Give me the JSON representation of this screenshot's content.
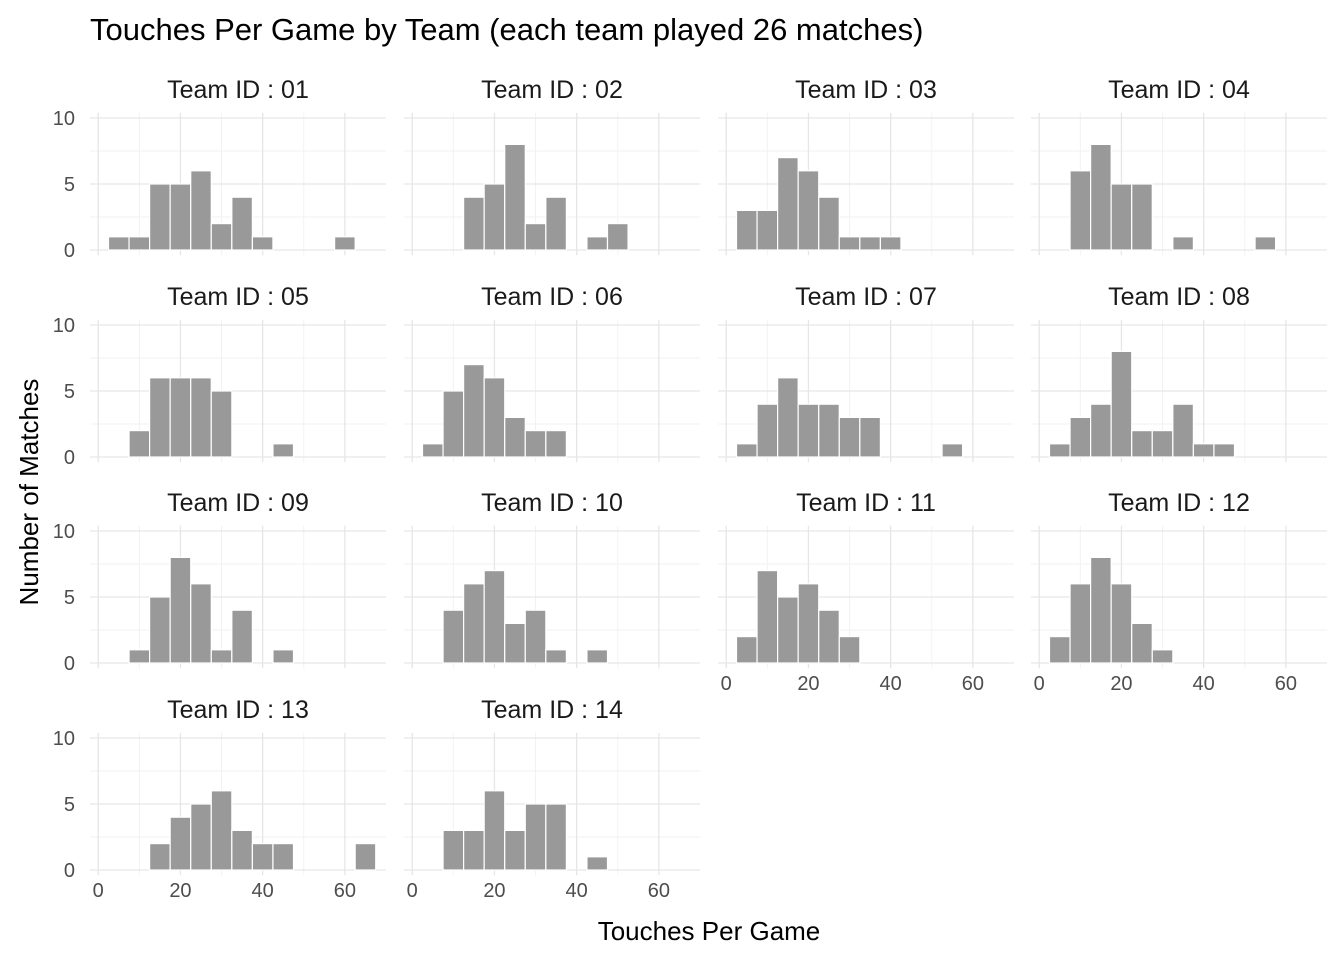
{
  "chart_data": {
    "type": "bar",
    "title": "Touches Per Game by Team (each team played 26 matches)",
    "xlabel": "Touches Per Game",
    "ylabel": "Number of Matches",
    "xlim": [
      -2,
      70
    ],
    "ylim": [
      0,
      10
    ],
    "x_ticks": [
      0,
      20,
      40,
      60
    ],
    "y_ticks": [
      0,
      5,
      10
    ],
    "bin_width": 5,
    "bar_color": "#999999",
    "grid": true,
    "panels": [
      {
        "label": "Team ID : 01",
        "bins": [
          [
            5,
            1
          ],
          [
            10,
            1
          ],
          [
            15,
            5
          ],
          [
            20,
            5
          ],
          [
            25,
            6
          ],
          [
            30,
            2
          ],
          [
            35,
            4
          ],
          [
            40,
            1
          ],
          [
            60,
            1
          ]
        ]
      },
      {
        "label": "Team ID : 02",
        "bins": [
          [
            15,
            4
          ],
          [
            20,
            5
          ],
          [
            25,
            8
          ],
          [
            30,
            2
          ],
          [
            35,
            4
          ],
          [
            45,
            1
          ],
          [
            50,
            2
          ]
        ]
      },
      {
        "label": "Team ID : 03",
        "bins": [
          [
            5,
            3
          ],
          [
            10,
            3
          ],
          [
            15,
            7
          ],
          [
            20,
            6
          ],
          [
            25,
            4
          ],
          [
            30,
            1
          ],
          [
            35,
            1
          ],
          [
            40,
            1
          ]
        ]
      },
      {
        "label": "Team ID : 04",
        "bins": [
          [
            10,
            6
          ],
          [
            15,
            8
          ],
          [
            20,
            5
          ],
          [
            25,
            5
          ],
          [
            35,
            1
          ],
          [
            55,
            1
          ]
        ]
      },
      {
        "label": "Team ID : 05",
        "bins": [
          [
            10,
            2
          ],
          [
            15,
            6
          ],
          [
            20,
            6
          ],
          [
            25,
            6
          ],
          [
            30,
            5
          ],
          [
            45,
            1
          ]
        ]
      },
      {
        "label": "Team ID : 06",
        "bins": [
          [
            5,
            1
          ],
          [
            10,
            5
          ],
          [
            15,
            7
          ],
          [
            20,
            6
          ],
          [
            25,
            3
          ],
          [
            30,
            2
          ],
          [
            35,
            2
          ]
        ]
      },
      {
        "label": "Team ID : 07",
        "bins": [
          [
            5,
            1
          ],
          [
            10,
            4
          ],
          [
            15,
            6
          ],
          [
            20,
            4
          ],
          [
            25,
            4
          ],
          [
            30,
            3
          ],
          [
            35,
            3
          ],
          [
            55,
            1
          ]
        ]
      },
      {
        "label": "Team ID : 08",
        "bins": [
          [
            5,
            1
          ],
          [
            10,
            3
          ],
          [
            15,
            4
          ],
          [
            20,
            8
          ],
          [
            25,
            2
          ],
          [
            30,
            2
          ],
          [
            35,
            4
          ],
          [
            40,
            1
          ],
          [
            45,
            1
          ]
        ]
      },
      {
        "label": "Team ID : 09",
        "bins": [
          [
            10,
            1
          ],
          [
            15,
            5
          ],
          [
            20,
            8
          ],
          [
            25,
            6
          ],
          [
            30,
            1
          ],
          [
            35,
            4
          ],
          [
            45,
            1
          ]
        ]
      },
      {
        "label": "Team ID : 10",
        "bins": [
          [
            10,
            4
          ],
          [
            15,
            6
          ],
          [
            20,
            7
          ],
          [
            25,
            3
          ],
          [
            30,
            4
          ],
          [
            35,
            1
          ],
          [
            45,
            1
          ]
        ]
      },
      {
        "label": "Team ID : 11",
        "bins": [
          [
            5,
            2
          ],
          [
            10,
            7
          ],
          [
            15,
            5
          ],
          [
            20,
            6
          ],
          [
            25,
            4
          ],
          [
            30,
            2
          ]
        ]
      },
      {
        "label": "Team ID : 12",
        "bins": [
          [
            5,
            2
          ],
          [
            10,
            6
          ],
          [
            15,
            8
          ],
          [
            20,
            6
          ],
          [
            25,
            3
          ],
          [
            30,
            1
          ]
        ]
      },
      {
        "label": "Team ID : 13",
        "bins": [
          [
            15,
            2
          ],
          [
            20,
            4
          ],
          [
            25,
            5
          ],
          [
            30,
            6
          ],
          [
            35,
            3
          ],
          [
            40,
            2
          ],
          [
            45,
            2
          ],
          [
            65,
            2
          ]
        ]
      },
      {
        "label": "Team ID : 14",
        "bins": [
          [
            10,
            3
          ],
          [
            15,
            3
          ],
          [
            20,
            6
          ],
          [
            25,
            3
          ],
          [
            30,
            5
          ],
          [
            35,
            5
          ],
          [
            45,
            1
          ]
        ]
      }
    ]
  }
}
